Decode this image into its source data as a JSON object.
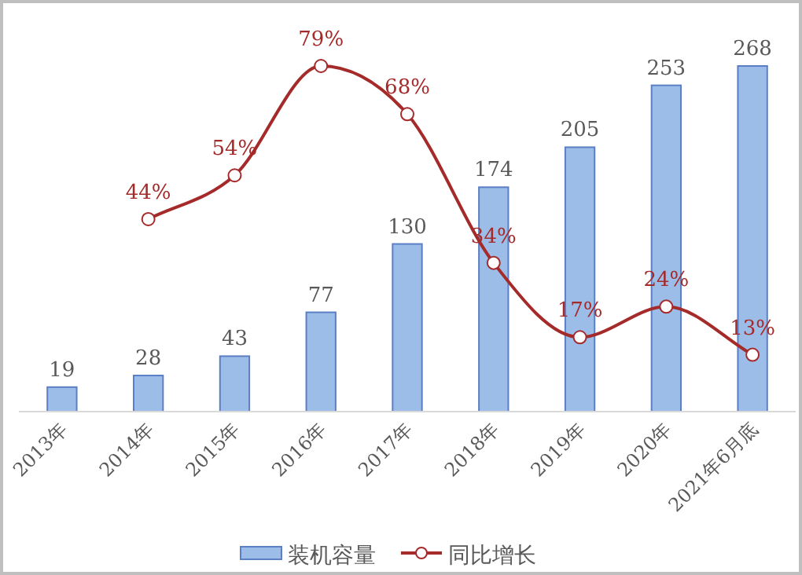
{
  "chart_data": {
    "type": "bar",
    "categories": [
      "2013年",
      "2014年",
      "2015年",
      "2016年",
      "2017年",
      "2018年",
      "2019年",
      "2020年",
      "2021年6月底"
    ],
    "series": [
      {
        "name": "装机容量",
        "color": "#9dbde9",
        "values": [
          19,
          28,
          43,
          77,
          130,
          174,
          205,
          253,
          268
        ]
      },
      {
        "name": "同比增长",
        "type": "line",
        "axis": "y2",
        "color": "#a52a2a",
        "marker": "circle",
        "values": [
          null,
          44,
          54,
          79,
          68,
          34,
          17,
          24,
          13
        ],
        "value_labels": [
          null,
          "44%",
          "54%",
          "79%",
          "68%",
          "34%",
          "17%",
          "24%",
          "13%"
        ]
      }
    ],
    "data_labels": true,
    "tick_labels": "x",
    "legend": "bottom"
  }
}
